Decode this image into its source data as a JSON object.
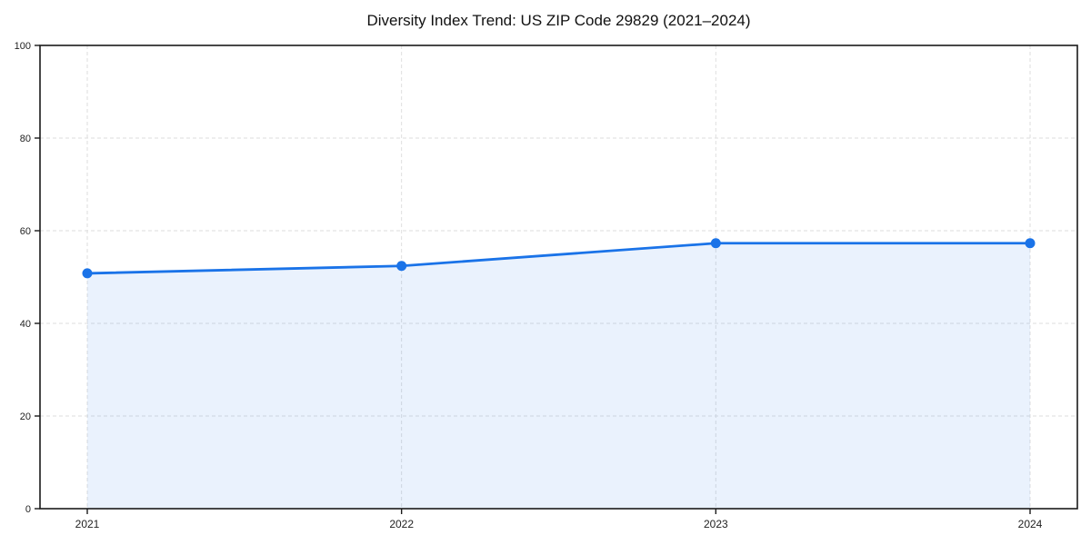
{
  "chart_data": {
    "type": "area",
    "title": "Diversity Index Trend: US ZIP Code 29829 (2021–2024)",
    "categories": [
      "2021",
      "2022",
      "2023",
      "2024"
    ],
    "series": [
      {
        "name": "Diversity Index",
        "values": [
          50.8,
          52.4,
          57.3,
          57.3
        ]
      }
    ],
    "xlabel": "",
    "ylabel": "",
    "ylim": [
      0,
      100
    ],
    "yticks": [
      0,
      20,
      40,
      60,
      80,
      100
    ],
    "grid": true,
    "grid_style": "dashed",
    "legend": false,
    "marker": "circle",
    "colors": {
      "line": "#1a73e8",
      "marker": "#1a73e8",
      "fill": "rgba(26,115,232,0.09)",
      "grid": "#dedede",
      "axis": "#1a1a1a",
      "tick_label": "#222222",
      "title": "#111111",
      "background": "#ffffff"
    }
  }
}
